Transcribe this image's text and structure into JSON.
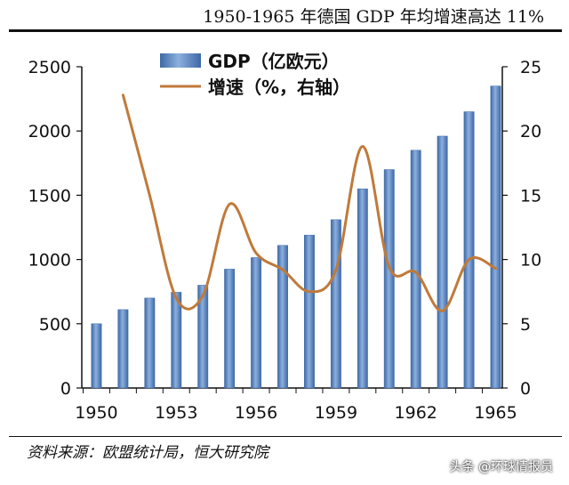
{
  "title": "1950-1965 年德国 GDP 年均增速高达 11%",
  "source": "资料来源：欧盟统计局，恒大研究院",
  "watermark": "头条 @环球情报员",
  "colors": {
    "bar": "#5a87c5",
    "bar_edge": "#3f6aa8",
    "line": "#c07a3a"
  },
  "chart_data": {
    "type": "bar",
    "title": "",
    "x": [
      1950,
      1951,
      1952,
      1953,
      1954,
      1955,
      1956,
      1957,
      1958,
      1959,
      1960,
      1961,
      1962,
      1963,
      1964,
      1965
    ],
    "x_tick_labels": [
      "1950",
      "1953",
      "1956",
      "1959",
      "1962",
      "1965"
    ],
    "x_tick_values": [
      1950,
      1953,
      1956,
      1959,
      1962,
      1965
    ],
    "series": [
      {
        "name": "GDP（亿欧元）",
        "type": "bar",
        "axis": "left",
        "values": [
          500,
          610,
          700,
          745,
          800,
          925,
          1015,
          1110,
          1190,
          1310,
          1550,
          1700,
          1850,
          1960,
          2150,
          2350
        ]
      },
      {
        "name": "增速（%，右轴）",
        "type": "line",
        "axis": "right",
        "smooth": true,
        "values": [
          null,
          22.8,
          15,
          7,
          7.2,
          14.3,
          10.5,
          9.2,
          7.5,
          9.2,
          18.8,
          9.4,
          9,
          6,
          10,
          9.3
        ]
      }
    ],
    "left_axis": {
      "ylim": [
        0,
        2500
      ],
      "ticks": [
        0,
        500,
        1000,
        1500,
        2000,
        2500
      ]
    },
    "right_axis": {
      "ylim": [
        0,
        25
      ],
      "ticks": [
        0,
        5,
        10,
        15,
        20,
        25
      ]
    },
    "legend_position": "top-center",
    "grid": false
  }
}
